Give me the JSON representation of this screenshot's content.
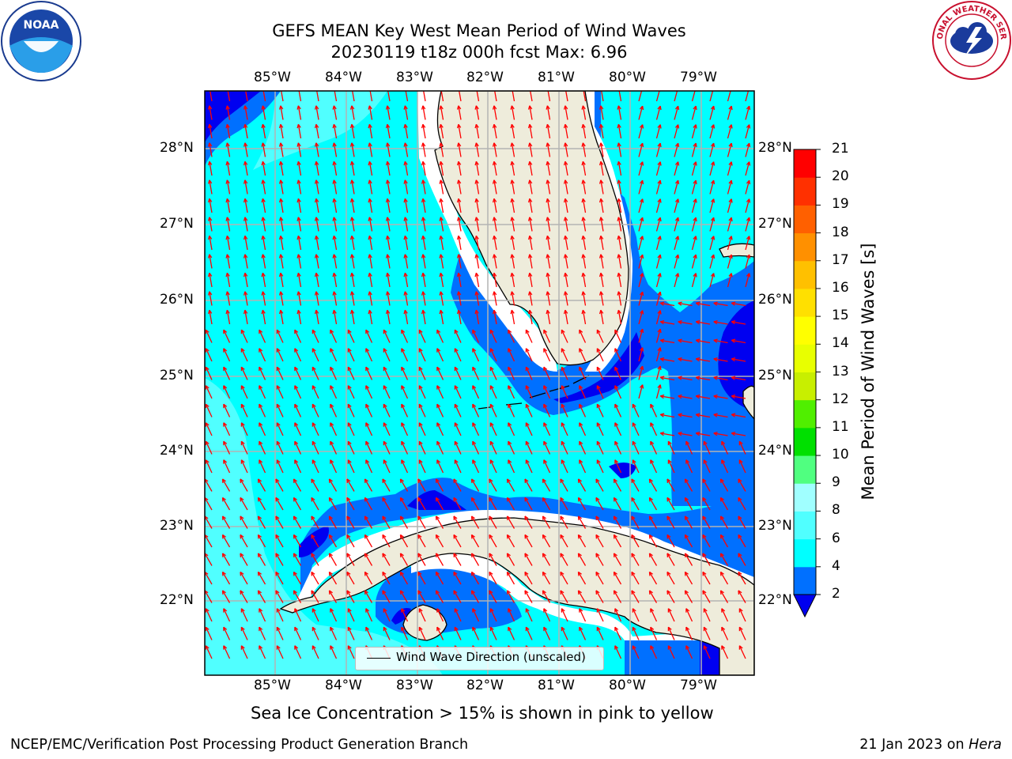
{
  "title": {
    "line1": "GEFS MEAN Key West Mean Period of Wind Waves",
    "line2": "20230119 t18z 000h fcst   Max: 6.96"
  },
  "map": {
    "lon_labels": [
      "85°W",
      "84°W",
      "83°W",
      "82°W",
      "81°W",
      "80°W",
      "79°W"
    ],
    "lat_labels": [
      "28°N",
      "27°N",
      "26°N",
      "25°N",
      "24°N",
      "23°N",
      "22°N"
    ],
    "lon_range": [
      -86.0,
      -78.3
    ],
    "lat_range": [
      21.0,
      28.75
    ],
    "land_color": "#eeecdb",
    "grid_color": "#b3b3b3"
  },
  "colorbar": {
    "label": "Mean Period of Wind Waves [s]",
    "ticks": [
      "2",
      "4",
      "6",
      "8",
      "9",
      "10",
      "11",
      "12",
      "13",
      "14",
      "15",
      "16",
      "17",
      "18",
      "19",
      "20",
      "21"
    ],
    "under_color": "#0000f0",
    "colors": [
      "#0070ff",
      "#00ffff",
      "#50ffff",
      "#a0ffff",
      "#50ff80",
      "#00e000",
      "#50ef00",
      "#c8ef00",
      "#e8ff00",
      "#ffff00",
      "#ffe000",
      "#ffc000",
      "#ff9000",
      "#ff6000",
      "#ff3000",
      "#ff0000"
    ]
  },
  "legend": {
    "label": "Wind Wave Direction (unscaled)"
  },
  "note": "Sea Ice Concentration > 15% is shown in pink to yellow",
  "footer": {
    "left": "NCEP/EMC/Verification Post Processing Product Generation Branch",
    "date": "21 Jan 2023 on",
    "machine": "Hera"
  },
  "logos": {
    "noaa_text": "NOAA",
    "nws_text": "NATIONAL WEATHER SERVICE"
  },
  "colors": {
    "arrow": "#ff0000",
    "cyan": "#00ffff",
    "light_cyan": "#50ffff",
    "blue": "#0070ff",
    "dark_blue": "#0000f0"
  }
}
